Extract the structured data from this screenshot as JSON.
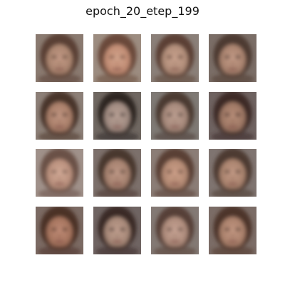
{
  "figure": {
    "title": "epoch_20_etep_199"
  },
  "grid": {
    "rows": 4,
    "cols": 4,
    "tiles": [
      {
        "row": 0,
        "col": 0,
        "bg": "#8a7a70",
        "hair": "#5a4034",
        "skin": "#a9846f",
        "tone": "#c49a86"
      },
      {
        "row": 0,
        "col": 1,
        "bg": "#9c8c80",
        "hair": "#6a4a3b",
        "skin": "#c08b73",
        "tone": "#d2a58d"
      },
      {
        "row": 0,
        "col": 2,
        "bg": "#8a7f78",
        "hair": "#5b4135",
        "skin": "#b08d79",
        "tone": "#c9a28e"
      },
      {
        "row": 0,
        "col": 3,
        "bg": "#7a6d66",
        "hair": "#4e3a31",
        "skin": "#a8826e",
        "tone": "#c39b87"
      },
      {
        "row": 1,
        "col": 0,
        "bg": "#8c7f77",
        "hair": "#4a342c",
        "skin": "#a77d68",
        "tone": "#c29783"
      },
      {
        "row": 1,
        "col": 1,
        "bg": "#6f6761",
        "hair": "#2f2724",
        "skin": "#9f8a80",
        "tone": "#b9a196"
      },
      {
        "row": 1,
        "col": 2,
        "bg": "#7e7974",
        "hair": "#4b3b33",
        "skin": "#a5887a",
        "tone": "#bea092"
      },
      {
        "row": 1,
        "col": 3,
        "bg": "#6e6260",
        "hair": "#3d2b27",
        "skin": "#9c7663",
        "tone": "#b98f7a"
      },
      {
        "row": 2,
        "col": 0,
        "bg": "#a0918a",
        "hair": "#6a5147",
        "skin": "#b88f7c",
        "tone": "#d3ab98"
      },
      {
        "row": 2,
        "col": 1,
        "bg": "#7c706b",
        "hair": "#4a372f",
        "skin": "#a4806e",
        "tone": "#c09a88"
      },
      {
        "row": 2,
        "col": 2,
        "bg": "#8b7d76",
        "hair": "#5a4035",
        "skin": "#b28973",
        "tone": "#cfa18a"
      },
      {
        "row": 2,
        "col": 3,
        "bg": "#7f7470",
        "hair": "#4d3a32",
        "skin": "#a8826d",
        "tone": "#c39a86"
      },
      {
        "row": 3,
        "col": 0,
        "bg": "#7b6a63",
        "hair": "#4c3128",
        "skin": "#a4735d",
        "tone": "#c08c77"
      },
      {
        "row": 3,
        "col": 1,
        "bg": "#6f6462",
        "hair": "#3a2926",
        "skin": "#a58777",
        "tone": "#c19f8f"
      },
      {
        "row": 3,
        "col": 2,
        "bg": "#837974",
        "hair": "#563f37",
        "skin": "#ad8b7b",
        "tone": "#c7a495"
      },
      {
        "row": 3,
        "col": 3,
        "bg": "#7b6c66",
        "hair": "#4e352b",
        "skin": "#a9806b",
        "tone": "#c39883"
      }
    ]
  }
}
